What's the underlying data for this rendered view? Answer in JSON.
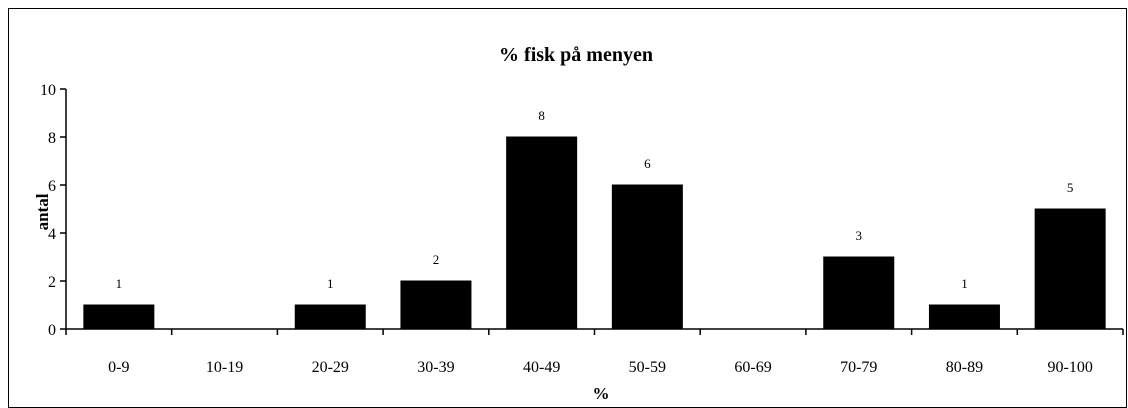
{
  "chart_data": {
    "type": "bar",
    "title": "% fisk på menyen",
    "xlabel": "%",
    "ylabel": "antal",
    "categories": [
      "0-9",
      "10-19",
      "20-29",
      "30-39",
      "40-49",
      "50-59",
      "60-69",
      "70-79",
      "80-89",
      "90-100"
    ],
    "values": [
      1,
      0,
      1,
      2,
      8,
      6,
      0,
      3,
      1,
      5
    ],
    "data_labels": [
      "1",
      "",
      "1",
      "2",
      "8",
      "6",
      "",
      "3",
      "1",
      "5"
    ],
    "ylim": [
      0,
      10
    ],
    "yticks": [
      0,
      2,
      4,
      6,
      8,
      10
    ],
    "grid": false,
    "legend": "none",
    "bar_color": "#000000"
  }
}
